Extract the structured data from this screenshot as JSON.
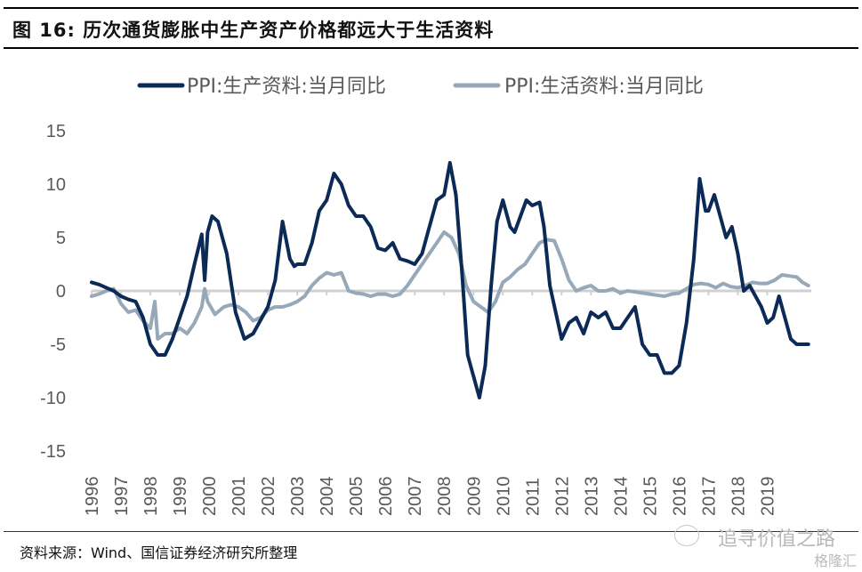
{
  "figure": {
    "title": "图  16:  历次通货膨胀中生产资产价格都远大于生活资料",
    "source": "资料来源：Wind、国信证券经济研究所整理",
    "watermark": "追寻价值之路",
    "watermark2": "格隆汇"
  },
  "colors": {
    "producer": "#0b2a55",
    "consumer": "#97a8b8",
    "zero_line": "#d0d0d0",
    "tick_text": "#595959"
  },
  "chart_data": {
    "type": "line",
    "title": "",
    "xlabel": "",
    "ylabel": "",
    "ylim": [
      -15,
      15
    ],
    "yticks": [
      15,
      10,
      5,
      0,
      -5,
      -10,
      -15
    ],
    "xticks": [
      "1996",
      "1997",
      "1998",
      "1999",
      "2000",
      "2001",
      "2002",
      "2003",
      "2004",
      "2005",
      "2006",
      "2007",
      "2008",
      "2009",
      "2010",
      "2011",
      "2012",
      "2013",
      "2014",
      "2015",
      "2016",
      "2017",
      "2018",
      "2019"
    ],
    "xlim": [
      1996.0,
      2020.5
    ],
    "legend": "top",
    "grid": false,
    "series": [
      {
        "name": "PPI:生产资料:当月同比",
        "color_key": "producer",
        "x": [
          1996.0,
          1996.25,
          1996.5,
          1996.75,
          1997.0,
          1997.25,
          1997.5,
          1997.75,
          1998.0,
          1998.25,
          1998.5,
          1998.75,
          1999.0,
          1999.25,
          1999.5,
          1999.75,
          1999.85,
          1999.95,
          2000.1,
          2000.3,
          2000.6,
          2000.9,
          2001.2,
          2001.5,
          2001.8,
          2002.0,
          2002.25,
          2002.5,
          2002.75,
          2002.9,
          2003.0,
          2003.25,
          2003.5,
          2003.75,
          2004.0,
          2004.25,
          2004.5,
          2004.75,
          2005.0,
          2005.25,
          2005.5,
          2005.75,
          2006.0,
          2006.25,
          2006.5,
          2006.75,
          2007.0,
          2007.25,
          2007.5,
          2007.75,
          2008.0,
          2008.2,
          2008.4,
          2008.6,
          2008.8,
          2009.0,
          2009.2,
          2009.4,
          2009.6,
          2009.8,
          2010.0,
          2010.25,
          2010.4,
          2010.6,
          2010.8,
          2011.0,
          2011.25,
          2011.4,
          2011.6,
          2011.8,
          2012.0,
          2012.25,
          2012.5,
          2012.75,
          2013.0,
          2013.25,
          2013.5,
          2013.75,
          2014.0,
          2014.25,
          2014.5,
          2014.75,
          2015.0,
          2015.25,
          2015.5,
          2015.75,
          2016.0,
          2016.25,
          2016.5,
          2016.7,
          2016.9,
          2017.0,
          2017.2,
          2017.4,
          2017.6,
          2017.8,
          2018.0,
          2018.2,
          2018.4,
          2018.6,
          2018.8,
          2019.0,
          2019.2,
          2019.4,
          2019.6,
          2019.8,
          2020.0,
          2020.2,
          2020.4
        ],
        "values": [
          0.8,
          0.6,
          0.3,
          0.0,
          -0.5,
          -0.8,
          -1.0,
          -2.5,
          -5.0,
          -6.0,
          -6.0,
          -4.5,
          -2.5,
          -0.5,
          2.5,
          5.3,
          1.0,
          5.5,
          7.0,
          6.5,
          3.5,
          -2.0,
          -4.5,
          -4.0,
          -2.5,
          -1.5,
          1.0,
          6.5,
          3.0,
          2.3,
          2.5,
          2.5,
          4.5,
          7.5,
          8.5,
          11.0,
          10.0,
          8.0,
          7.0,
          7.0,
          6.0,
          4.0,
          3.8,
          4.5,
          3.0,
          2.8,
          2.5,
          3.5,
          6.0,
          8.5,
          9.0,
          12.0,
          9.0,
          2.0,
          -6.0,
          -8.0,
          -10.0,
          -7.0,
          0.5,
          6.5,
          8.5,
          6.0,
          5.5,
          7.0,
          8.5,
          8.0,
          8.3,
          6.0,
          0.5,
          -2.0,
          -4.5,
          -3.0,
          -2.5,
          -4.0,
          -2.0,
          -2.5,
          -2.0,
          -3.5,
          -3.5,
          -2.5,
          -1.5,
          -5.0,
          -6.0,
          -6.0,
          -7.7,
          -7.7,
          -7.0,
          -3.0,
          3.0,
          10.5,
          7.5,
          7.5,
          9.0,
          7.0,
          5.0,
          6.0,
          3.5,
          0.0,
          0.5,
          -0.5,
          -1.5,
          -3.0,
          -2.5,
          -0.5,
          -2.5,
          -4.5,
          -5.0,
          -5.0,
          -5.0
        ]
      },
      {
        "name": "PPI:生活资料:当月同比",
        "color_key": "consumer",
        "x": [
          1996.0,
          1996.25,
          1996.5,
          1996.75,
          1997.0,
          1997.25,
          1997.5,
          1997.75,
          1998.0,
          1998.15,
          1998.25,
          1998.5,
          1998.75,
          1999.0,
          1999.25,
          1999.5,
          1999.75,
          1999.85,
          1999.95,
          2000.2,
          2000.5,
          2000.75,
          2001.0,
          2001.25,
          2001.5,
          2001.75,
          2002.0,
          2002.25,
          2002.5,
          2002.75,
          2003.0,
          2003.25,
          2003.5,
          2003.75,
          2004.0,
          2004.25,
          2004.5,
          2004.75,
          2005.0,
          2005.25,
          2005.5,
          2005.75,
          2006.0,
          2006.25,
          2006.5,
          2006.75,
          2007.0,
          2007.25,
          2007.5,
          2007.75,
          2008.0,
          2008.25,
          2008.5,
          2008.75,
          2009.0,
          2009.25,
          2009.5,
          2009.75,
          2010.0,
          2010.25,
          2010.5,
          2010.75,
          2011.0,
          2011.25,
          2011.5,
          2011.75,
          2012.0,
          2012.25,
          2012.5,
          2012.75,
          2013.0,
          2013.25,
          2013.5,
          2013.75,
          2014.0,
          2014.25,
          2014.5,
          2014.75,
          2015.0,
          2015.25,
          2015.5,
          2015.75,
          2016.0,
          2016.25,
          2016.5,
          2016.75,
          2017.0,
          2017.25,
          2017.5,
          2017.75,
          2018.0,
          2018.25,
          2018.5,
          2018.75,
          2019.0,
          2019.25,
          2019.5,
          2019.75,
          2020.0,
          2020.2,
          2020.4
        ],
        "values": [
          -0.5,
          -0.3,
          0.0,
          0.2,
          -1.2,
          -2.0,
          -1.8,
          -2.8,
          -3.5,
          -1.0,
          -4.5,
          -4.0,
          -4.0,
          -3.5,
          -4.0,
          -3.0,
          -1.5,
          0.2,
          -1.0,
          -2.2,
          -1.5,
          -1.3,
          -1.5,
          -2.0,
          -2.8,
          -2.5,
          -1.8,
          -1.5,
          -1.5,
          -1.3,
          -1.0,
          -0.5,
          0.5,
          1.2,
          1.7,
          1.5,
          1.7,
          0.0,
          -0.2,
          -0.3,
          -0.5,
          -0.3,
          -0.3,
          -0.5,
          -0.3,
          0.5,
          1.5,
          2.5,
          3.5,
          4.5,
          5.5,
          5.0,
          3.5,
          0.5,
          -1.0,
          -1.5,
          -2.0,
          -1.0,
          0.8,
          1.3,
          2.0,
          2.5,
          3.5,
          4.5,
          4.8,
          4.7,
          3.0,
          1.0,
          0.0,
          0.3,
          0.5,
          0.0,
          0.0,
          0.2,
          -0.2,
          0.0,
          -0.1,
          -0.2,
          -0.3,
          -0.4,
          -0.5,
          -0.3,
          -0.2,
          0.2,
          0.6,
          0.7,
          0.6,
          0.3,
          0.7,
          0.4,
          0.3,
          0.5,
          0.8,
          0.7,
          0.7,
          1.0,
          1.5,
          1.4,
          1.3,
          0.8,
          0.5
        ]
      }
    ]
  }
}
